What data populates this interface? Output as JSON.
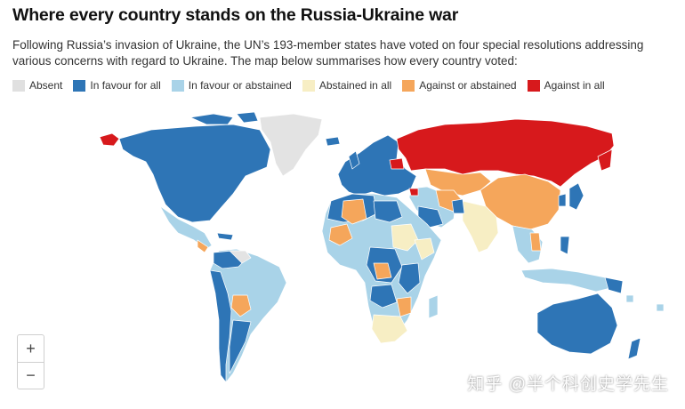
{
  "title": "Where every country stands on the Russia-Ukraine war",
  "subtitle": "Following Russia’s invasion of Ukraine, the UN’s 193-member states have voted on four special resolutions addressing various concerns with regard to Ukraine. The map below summarises how every country voted:",
  "legend": [
    {
      "label": "Absent",
      "color": "#e0e0e0"
    },
    {
      "label": "In favour for all",
      "color": "#2e75b6"
    },
    {
      "label": "In favour or abstained",
      "color": "#a9d3e8"
    },
    {
      "label": "Abstained in all",
      "color": "#f7eec4"
    },
    {
      "label": "Against or abstained",
      "color": "#f5a65b"
    },
    {
      "label": "Against in all",
      "color": "#d7191c"
    }
  ],
  "zoom": {
    "in_label": "+",
    "out_label": "−"
  },
  "watermark": "知乎 @半个科创史学先生"
}
